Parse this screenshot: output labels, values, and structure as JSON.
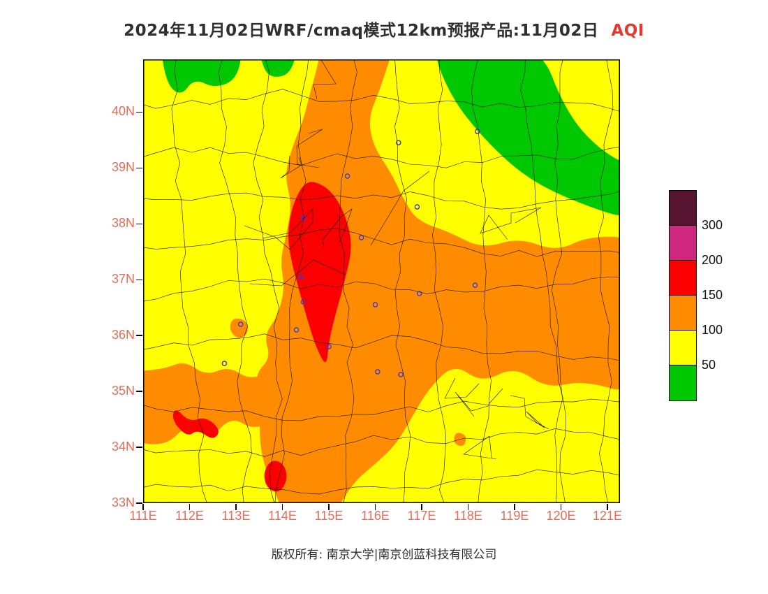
{
  "title": {
    "main": "2024年11月02日WRF/cmaq模式12km预报产品:11月02日",
    "aqi_label": "AQI"
  },
  "footer": {
    "copyright": "版权所有: 南京大学|南京创蓝科技有限公司"
  },
  "colors": {
    "background": "#ffffff",
    "title_text": "#2f2f2f",
    "title_variable": "#e8372d",
    "axis_labels": "#e96a57",
    "footer_text": "#2f2f2f",
    "map_border": "#000000",
    "boundaries": "#141414",
    "station_marker": "#3a3ad2"
  },
  "axes": {
    "lat": [
      {
        "label": "40N",
        "deg": 40
      },
      {
        "label": "39N",
        "deg": 39
      },
      {
        "label": "38N",
        "deg": 38
      },
      {
        "label": "37N",
        "deg": 37
      },
      {
        "label": "36N",
        "deg": 36
      },
      {
        "label": "35N",
        "deg": 35
      },
      {
        "label": "34N",
        "deg": 34
      },
      {
        "label": "33N",
        "deg": 33
      }
    ],
    "lon": [
      {
        "label": "111E",
        "deg": 111
      },
      {
        "label": "112E",
        "deg": 112
      },
      {
        "label": "113E",
        "deg": 113
      },
      {
        "label": "114E",
        "deg": 114
      },
      {
        "label": "115E",
        "deg": 115
      },
      {
        "label": "116E",
        "deg": 116
      },
      {
        "label": "117E",
        "deg": 117
      },
      {
        "label": "118E",
        "deg": 118
      },
      {
        "label": "119E",
        "deg": 119
      },
      {
        "label": "120E",
        "deg": 120
      },
      {
        "label": "121E",
        "deg": 121
      }
    ]
  },
  "colorbar": {
    "segments": [
      {
        "color": "#571430",
        "range": "> 300"
      },
      {
        "color": "#cf2680",
        "range": "200 - 300"
      },
      {
        "color": "#fc0000",
        "range": "150 - 200"
      },
      {
        "color": "#ff8c00",
        "range": "100 - 150"
      },
      {
        "color": "#ffff00",
        "range": "50 - 100"
      },
      {
        "color": "#00c800",
        "range": "0 - 50"
      }
    ],
    "boundary_labels": [
      "300",
      "200",
      "150",
      "100",
      "50"
    ]
  },
  "chart_data": {
    "type": "heatmap",
    "subtype": "filled-contour-forecast-map",
    "title": "2024年11月02日WRF/cmaq模式12km预报产品:11月02日 AQI",
    "variable": "AQI",
    "model": "WRF/cmaq 12km",
    "forecast_date": "2024-11-02",
    "x": {
      "label": "longitude",
      "tick_labels": [
        "111E",
        "112E",
        "113E",
        "114E",
        "115E",
        "116E",
        "117E",
        "118E",
        "119E",
        "120E",
        "121E"
      ],
      "range": [
        111,
        121.27
      ]
    },
    "y": {
      "label": "latitude",
      "tick_labels": [
        "33N",
        "34N",
        "35N",
        "36N",
        "37N",
        "38N",
        "39N",
        "40N"
      ],
      "range": [
        33,
        40.94
      ]
    },
    "levels": [
      50,
      100,
      150,
      200,
      300
    ],
    "palette": [
      "#00c800",
      "#ffff00",
      "#ff8c00",
      "#fc0000",
      "#cf2680",
      "#571430"
    ],
    "background_bin": "50-100 (yellow) over most of the domain",
    "features": [
      "Red AQI 150-200 elongated core over southern Hebei / northern Henan, approx 114.1-115.5E, 35.4-38.8N",
      "Broad orange AQI 100-150 band from the central north edge south through Henan and east across Shandong to the right edge (approx 34.9-37.8N)",
      "Orange AQI 100-150 lobe in the southwest, approx 111-114E, 34.1-35.5N",
      "Green AQI <=50 along the northwest top edge (approx 111.3-113.2E) and a diagonal northeast band (approx 117.2-121.3E, 38-41N)",
      "Small red patches near 112.2E 34.4N and 113.9E 33.5N"
    ],
    "regions": {
      "green": [
        [
          [
            111.35,
            41.3
          ],
          [
            113.15,
            41.3
          ],
          [
            113.05,
            40.6
          ],
          [
            112.55,
            40.42
          ],
          [
            112.1,
            40.6
          ],
          [
            111.82,
            40.28
          ],
          [
            111.5,
            40.5
          ]
        ],
        [
          [
            113.5,
            41.3
          ],
          [
            114.35,
            41.3
          ],
          [
            114.2,
            40.68
          ],
          [
            113.75,
            40.6
          ],
          [
            113.55,
            40.85
          ]
        ],
        [
          [
            117.15,
            41.3
          ],
          [
            119.5,
            41.3
          ],
          [
            120.1,
            40.0
          ],
          [
            120.85,
            39.3
          ],
          [
            121.7,
            38.95
          ],
          [
            121.7,
            38.0
          ],
          [
            120.2,
            38.42
          ],
          [
            119.2,
            38.85
          ],
          [
            118.3,
            39.55
          ],
          [
            117.6,
            40.3
          ]
        ]
      ],
      "orange": [
        [
          [
            114.88,
            41.3
          ],
          [
            116.45,
            41.3
          ],
          [
            116.1,
            40.4
          ],
          [
            115.85,
            39.9
          ],
          [
            115.95,
            39.4
          ],
          [
            116.35,
            38.9
          ],
          [
            116.6,
            38.45
          ],
          [
            116.9,
            38.05
          ],
          [
            117.6,
            37.85
          ],
          [
            118.3,
            37.55
          ],
          [
            119.1,
            37.75
          ],
          [
            119.9,
            37.5
          ],
          [
            120.6,
            37.78
          ],
          [
            121.7,
            37.75
          ],
          [
            121.7,
            34.9
          ],
          [
            120.5,
            35.2
          ],
          [
            119.7,
            35.05
          ],
          [
            119.0,
            35.45
          ],
          [
            118.3,
            35.15
          ],
          [
            117.7,
            35.5
          ],
          [
            117.15,
            35.05
          ],
          [
            116.8,
            34.55
          ],
          [
            116.45,
            34.05
          ],
          [
            116.0,
            33.7
          ],
          [
            115.5,
            33.35
          ],
          [
            115.05,
            32.7
          ],
          [
            114.1,
            32.7
          ],
          [
            113.75,
            33.35
          ],
          [
            113.55,
            33.85
          ],
          [
            113.5,
            34.35
          ],
          [
            113.55,
            34.85
          ],
          [
            113.4,
            35.3
          ],
          [
            113.75,
            35.6
          ],
          [
            113.6,
            36.0
          ],
          [
            113.9,
            36.35
          ],
          [
            114.05,
            36.85
          ],
          [
            113.95,
            37.35
          ],
          [
            114.1,
            37.85
          ],
          [
            114.2,
            38.35
          ],
          [
            114.05,
            38.85
          ],
          [
            114.2,
            39.35
          ],
          [
            114.45,
            39.85
          ],
          [
            114.6,
            40.35
          ],
          [
            114.75,
            40.8
          ]
        ],
        [
          [
            110.7,
            35.35
          ],
          [
            111.45,
            35.4
          ],
          [
            111.9,
            35.55
          ],
          [
            112.35,
            35.28
          ],
          [
            112.85,
            35.45
          ],
          [
            113.3,
            35.2
          ],
          [
            113.85,
            35.4
          ],
          [
            114.05,
            35.0
          ],
          [
            113.9,
            34.55
          ],
          [
            113.4,
            34.3
          ],
          [
            112.9,
            34.55
          ],
          [
            112.45,
            34.15
          ],
          [
            111.95,
            34.42
          ],
          [
            111.5,
            34.02
          ],
          [
            110.7,
            34.1
          ]
        ],
        [
          [
            112.92,
            36.32
          ],
          [
            113.22,
            36.28
          ],
          [
            113.28,
            36.05
          ],
          [
            113.05,
            35.92
          ],
          [
            112.85,
            36.1
          ]
        ],
        [
          [
            117.72,
            34.28
          ],
          [
            117.97,
            34.22
          ],
          [
            117.92,
            34.0
          ],
          [
            117.68,
            34.06
          ]
        ]
      ],
      "red": [
        [
          [
            114.5,
            38.78
          ],
          [
            114.88,
            38.7
          ],
          [
            115.18,
            38.45
          ],
          [
            115.42,
            38.0
          ],
          [
            115.5,
            37.55
          ],
          [
            115.35,
            37.0
          ],
          [
            115.15,
            36.4
          ],
          [
            115.0,
            35.9
          ],
          [
            114.95,
            35.42
          ],
          [
            114.72,
            35.8
          ],
          [
            114.55,
            36.25
          ],
          [
            114.38,
            36.75
          ],
          [
            114.2,
            37.3
          ],
          [
            114.1,
            37.8
          ],
          [
            114.22,
            38.35
          ]
        ],
        [
          [
            111.68,
            34.72
          ],
          [
            112.0,
            34.45
          ],
          [
            112.35,
            34.55
          ],
          [
            112.68,
            34.3
          ],
          [
            112.5,
            34.12
          ],
          [
            112.18,
            34.32
          ],
          [
            111.95,
            34.18
          ],
          [
            111.62,
            34.48
          ]
        ],
        [
          [
            113.75,
            33.78
          ],
          [
            114.02,
            33.72
          ],
          [
            114.12,
            33.45
          ],
          [
            113.95,
            33.18
          ],
          [
            113.68,
            33.25
          ],
          [
            113.58,
            33.52
          ]
        ]
      ]
    },
    "station_markers": [
      [
        118.2,
        39.65
      ],
      [
        116.5,
        39.45
      ],
      [
        115.4,
        38.85
      ],
      [
        114.45,
        38.1
      ],
      [
        115.7,
        37.75
      ],
      [
        116.9,
        38.3
      ],
      [
        114.4,
        37.05
      ],
      [
        114.45,
        36.6
      ],
      [
        113.1,
        36.2
      ],
      [
        114.3,
        36.1
      ],
      [
        112.75,
        35.5
      ],
      [
        115.0,
        35.8
      ],
      [
        116.0,
        36.55
      ],
      [
        116.05,
        35.35
      ],
      [
        116.95,
        36.75
      ],
      [
        118.15,
        36.9
      ],
      [
        116.55,
        35.3
      ]
    ],
    "legend_position": "right",
    "grid": false
  }
}
